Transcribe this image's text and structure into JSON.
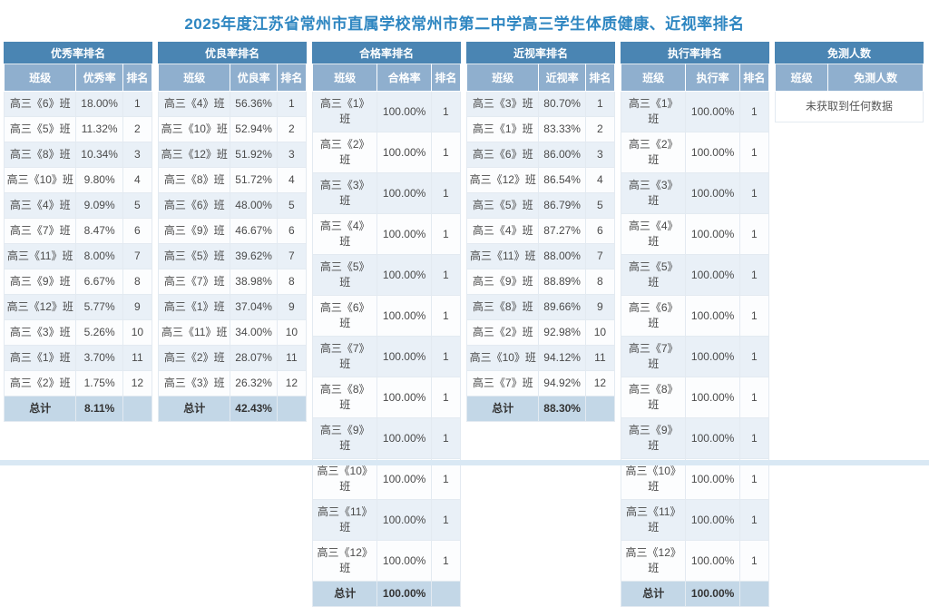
{
  "page": {
    "title": "2025年度江苏省常州市直属学校常州市第二中学高三学生体质健康、近视率排名"
  },
  "colors": {
    "title_text": "#2e86c1",
    "table_title_bg": "#4a85b3",
    "column_header_bg": "#8fafce",
    "row_odd_bg": "#e9f0f7",
    "row_even_bg": "#fcfdfe",
    "total_row_bg": "#c3d7e7",
    "footer_bar_bg": "#d9e8f4",
    "cell_text": "#4a4a4a"
  },
  "tables": [
    {
      "id": "excellent-rate",
      "title": "优秀率排名",
      "columns": [
        "班级",
        "优秀率",
        "排名"
      ],
      "rows": [
        [
          "高三《6》班",
          "18.00%",
          "1"
        ],
        [
          "高三《5》班",
          "11.32%",
          "2"
        ],
        [
          "高三《8》班",
          "10.34%",
          "3"
        ],
        [
          "高三《10》班",
          "9.80%",
          "4"
        ],
        [
          "高三《4》班",
          "9.09%",
          "5"
        ],
        [
          "高三《7》班",
          "8.47%",
          "6"
        ],
        [
          "高三《11》班",
          "8.00%",
          "7"
        ],
        [
          "高三《9》班",
          "6.67%",
          "8"
        ],
        [
          "高三《12》班",
          "5.77%",
          "9"
        ],
        [
          "高三《3》班",
          "5.26%",
          "10"
        ],
        [
          "高三《1》班",
          "3.70%",
          "11"
        ],
        [
          "高三《2》班",
          "1.75%",
          "12"
        ]
      ],
      "total": [
        "总计",
        "8.11%",
        ""
      ]
    },
    {
      "id": "good-rate",
      "title": "优良率排名",
      "columns": [
        "班级",
        "优良率",
        "排名"
      ],
      "rows": [
        [
          "高三《4》班",
          "56.36%",
          "1"
        ],
        [
          "高三《10》班",
          "52.94%",
          "2"
        ],
        [
          "高三《12》班",
          "51.92%",
          "3"
        ],
        [
          "高三《8》班",
          "51.72%",
          "4"
        ],
        [
          "高三《6》班",
          "48.00%",
          "5"
        ],
        [
          "高三《9》班",
          "46.67%",
          "6"
        ],
        [
          "高三《5》班",
          "39.62%",
          "7"
        ],
        [
          "高三《7》班",
          "38.98%",
          "8"
        ],
        [
          "高三《1》班",
          "37.04%",
          "9"
        ],
        [
          "高三《11》班",
          "34.00%",
          "10"
        ],
        [
          "高三《2》班",
          "28.07%",
          "11"
        ],
        [
          "高三《3》班",
          "26.32%",
          "12"
        ]
      ],
      "total": [
        "总计",
        "42.43%",
        ""
      ]
    },
    {
      "id": "pass-rate",
      "title": "合格率排名",
      "columns": [
        "班级",
        "合格率",
        "排名"
      ],
      "rows": [
        [
          "高三《1》班",
          "100.00%",
          "1"
        ],
        [
          "高三《2》班",
          "100.00%",
          "1"
        ],
        [
          "高三《3》班",
          "100.00%",
          "1"
        ],
        [
          "高三《4》班",
          "100.00%",
          "1"
        ],
        [
          "高三《5》班",
          "100.00%",
          "1"
        ],
        [
          "高三《6》班",
          "100.00%",
          "1"
        ],
        [
          "高三《7》班",
          "100.00%",
          "1"
        ],
        [
          "高三《8》班",
          "100.00%",
          "1"
        ],
        [
          "高三《9》班",
          "100.00%",
          "1"
        ],
        [
          "高三《10》班",
          "100.00%",
          "1"
        ],
        [
          "高三《11》班",
          "100.00%",
          "1"
        ],
        [
          "高三《12》班",
          "100.00%",
          "1"
        ]
      ],
      "total": [
        "总计",
        "100.00%",
        ""
      ]
    },
    {
      "id": "myopia-rate",
      "title": "近视率排名",
      "columns": [
        "班级",
        "近视率",
        "排名"
      ],
      "rows": [
        [
          "高三《3》班",
          "80.70%",
          "1"
        ],
        [
          "高三《1》班",
          "83.33%",
          "2"
        ],
        [
          "高三《6》班",
          "86.00%",
          "3"
        ],
        [
          "高三《12》班",
          "86.54%",
          "4"
        ],
        [
          "高三《5》班",
          "86.79%",
          "5"
        ],
        [
          "高三《4》班",
          "87.27%",
          "6"
        ],
        [
          "高三《11》班",
          "88.00%",
          "7"
        ],
        [
          "高三《9》班",
          "88.89%",
          "8"
        ],
        [
          "高三《8》班",
          "89.66%",
          "9"
        ],
        [
          "高三《2》班",
          "92.98%",
          "10"
        ],
        [
          "高三《10》班",
          "94.12%",
          "11"
        ],
        [
          "高三《7》班",
          "94.92%",
          "12"
        ]
      ],
      "total": [
        "总计",
        "88.30%",
        ""
      ]
    },
    {
      "id": "execution-rate",
      "title": "执行率排名",
      "columns": [
        "班级",
        "执行率",
        "排名"
      ],
      "rows": [
        [
          "高三《1》班",
          "100.00%",
          "1"
        ],
        [
          "高三《2》班",
          "100.00%",
          "1"
        ],
        [
          "高三《3》班",
          "100.00%",
          "1"
        ],
        [
          "高三《4》班",
          "100.00%",
          "1"
        ],
        [
          "高三《5》班",
          "100.00%",
          "1"
        ],
        [
          "高三《6》班",
          "100.00%",
          "1"
        ],
        [
          "高三《7》班",
          "100.00%",
          "1"
        ],
        [
          "高三《8》班",
          "100.00%",
          "1"
        ],
        [
          "高三《9》班",
          "100.00%",
          "1"
        ],
        [
          "高三《10》班",
          "100.00%",
          "1"
        ],
        [
          "高三《11》班",
          "100.00%",
          "1"
        ],
        [
          "高三《12》班",
          "100.00%",
          "1"
        ]
      ],
      "total": [
        "总计",
        "100.00%",
        ""
      ]
    },
    {
      "id": "exempt-count",
      "title": "免测人数",
      "columns": [
        "班级",
        "免测人数"
      ],
      "rows": [],
      "empty": "未获取到任何数据"
    }
  ]
}
